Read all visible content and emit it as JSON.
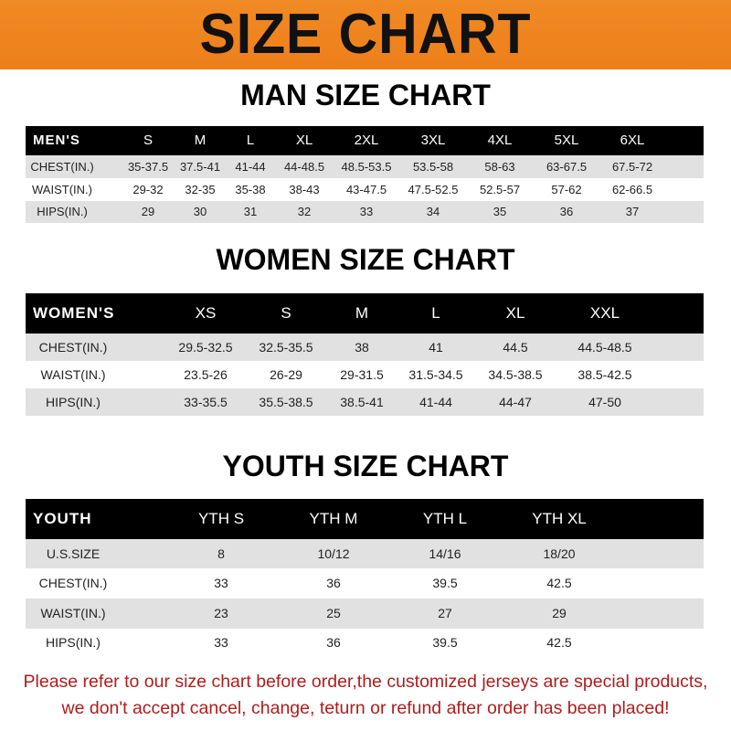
{
  "title": "SIZE CHART",
  "men": {
    "heading": "MAN SIZE CHART",
    "header": [
      "MEN'S",
      "S",
      "M",
      "L",
      "XL",
      "2XL",
      "3XL",
      "4XL",
      "5XL",
      "6XL"
    ],
    "rows": [
      [
        "CHEST(IN.)",
        "35-37.5",
        "37.5-41",
        "41-44",
        "44-48.5",
        "48.5-53.5",
        "53.5-58",
        "58-63",
        "63-67.5",
        "67.5-72"
      ],
      [
        "WAIST(IN.)",
        "29-32",
        "32-35",
        "35-38",
        "38-43",
        "43-47.5",
        "47.5-52.5",
        "52.5-57",
        "57-62",
        "62-66.5"
      ],
      [
        "HIPS(IN.)",
        "29",
        "30",
        "31",
        "32",
        "33",
        "34",
        "35",
        "36",
        "37"
      ]
    ]
  },
  "women": {
    "heading": "WOMEN SIZE CHART",
    "header": [
      "WOMEN'S",
      "XS",
      "S",
      "M",
      "L",
      "XL",
      "XXL"
    ],
    "rows": [
      [
        "CHEST(IN.)",
        "29.5-32.5",
        "32.5-35.5",
        "38",
        "41",
        "44.5",
        "44.5-48.5"
      ],
      [
        "WAIST(IN.)",
        "23.5-26",
        "26-29",
        "29-31.5",
        "31.5-34.5",
        "34.5-38.5",
        "38.5-42.5"
      ],
      [
        "HIPS(IN.)",
        "33-35.5",
        "35.5-38.5",
        "38.5-41",
        "41-44",
        "44-47",
        "47-50"
      ]
    ]
  },
  "youth": {
    "heading": "YOUTH SIZE CHART",
    "header": [
      "YOUTH",
      "YTH S",
      "YTH M",
      "YTH L",
      "YTH XL"
    ],
    "rows": [
      [
        "U.S.SIZE",
        "8",
        "10/12",
        "14/16",
        "18/20"
      ],
      [
        "CHEST(IN.)",
        "33",
        "36",
        "39.5",
        "42.5"
      ],
      [
        "WAIST(IN.)",
        "23",
        "25",
        "27",
        "29"
      ],
      [
        "HIPS(IN.)",
        "33",
        "36",
        "39.5",
        "42.5"
      ]
    ]
  },
  "footer": {
    "line1": "Please refer to our size chart before order,the customized jerseys are special products,",
    "line2": "we don't accept cancel, change, teturn or refund after order has been placed!"
  },
  "colors": {
    "banner": "#ef8420",
    "footer_text": "#b01c1c",
    "header_row": "#000000",
    "stripe": "#e1e1e1"
  }
}
